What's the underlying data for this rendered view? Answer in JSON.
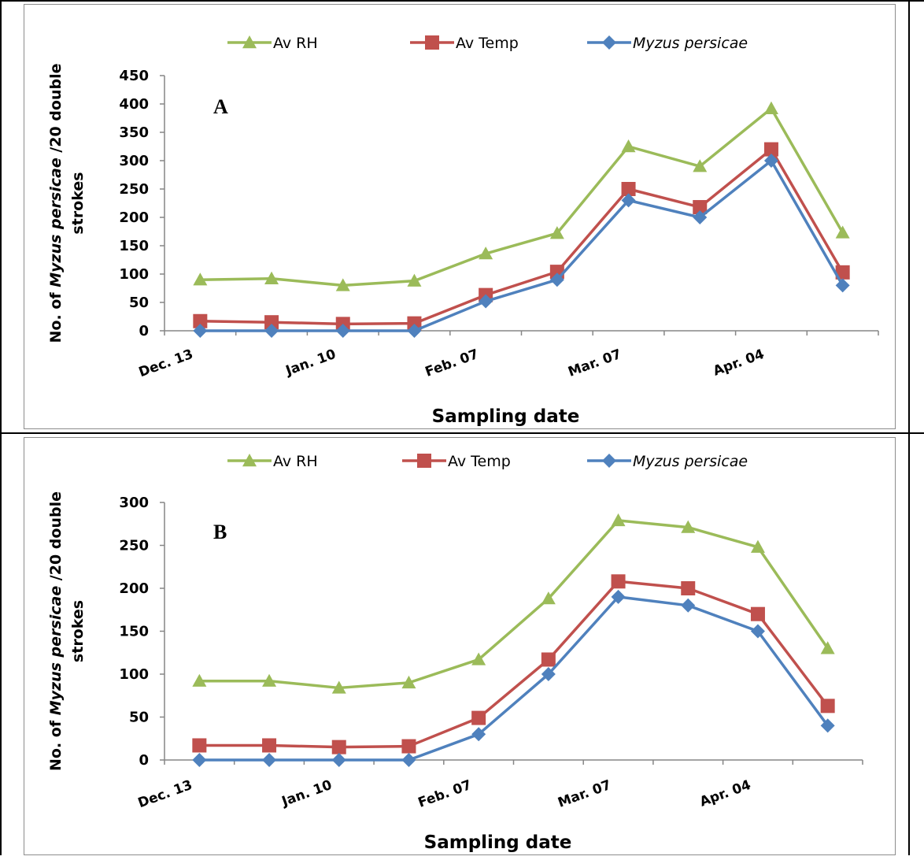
{
  "chart_data": [
    {
      "type": "line",
      "panel_label": "A",
      "xlabel": "Sampling date",
      "ylabel_parts": [
        "No. of ",
        "Myzus persicae",
        " /20 double",
        "strokes"
      ],
      "ylim": [
        0,
        450
      ],
      "yticks": [
        0,
        50,
        100,
        150,
        200,
        250,
        300,
        350,
        400,
        450
      ],
      "x": [
        "Dec. 13",
        "",
        "Jan. 10",
        "",
        "Feb. 07",
        "",
        "Mar. 07",
        "",
        "Apr. 04",
        ""
      ],
      "xtick_labels": [
        "Dec. 13",
        "Jan. 10",
        "Feb. 07",
        "Mar. 07",
        "Apr. 04"
      ],
      "legend_position": "top",
      "series": [
        {
          "name": "Av RH",
          "italic": false,
          "color": "#9bbb59",
          "marker": "triangle",
          "values": [
            90,
            92,
            80,
            88,
            136,
            172,
            325,
            290,
            392,
            173
          ]
        },
        {
          "name": "Av Temp",
          "italic": false,
          "color": "#c0504d",
          "marker": "square",
          "values": [
            17,
            15,
            12,
            13,
            63,
            104,
            250,
            218,
            320,
            103
          ]
        },
        {
          "name": "Myzus persicae",
          "italic": true,
          "color": "#4f81bd",
          "marker": "diamond",
          "values": [
            0,
            0,
            0,
            0,
            52,
            90,
            230,
            200,
            300,
            80
          ]
        }
      ]
    },
    {
      "type": "line",
      "panel_label": "B",
      "xlabel": "Sampling date",
      "ylabel_parts": [
        "No. of ",
        "Myzus persicae",
        " /20 double",
        "strokes"
      ],
      "ylim": [
        0,
        300
      ],
      "yticks": [
        0,
        50,
        100,
        150,
        200,
        250,
        300
      ],
      "x": [
        "Dec. 13",
        "",
        "Jan. 10",
        "",
        "Feb. 07",
        "",
        "Mar. 07",
        "",
        "Apr. 04",
        ""
      ],
      "xtick_labels": [
        "Dec. 13",
        "Jan. 10",
        "Feb. 07",
        "Mar. 07",
        "Apr. 04"
      ],
      "legend_position": "top",
      "series": [
        {
          "name": "Av RH",
          "italic": false,
          "color": "#9bbb59",
          "marker": "triangle",
          "values": [
            92,
            92,
            84,
            90,
            117,
            188,
            279,
            271,
            248,
            130
          ]
        },
        {
          "name": "Av Temp",
          "italic": false,
          "color": "#c0504d",
          "marker": "square",
          "values": [
            17,
            17,
            15,
            16,
            49,
            117,
            208,
            200,
            170,
            63
          ]
        },
        {
          "name": "Myzus persicae",
          "italic": true,
          "color": "#4f81bd",
          "marker": "diamond",
          "values": [
            0,
            0,
            0,
            0,
            30,
            100,
            190,
            180,
            150,
            40
          ]
        }
      ]
    }
  ]
}
